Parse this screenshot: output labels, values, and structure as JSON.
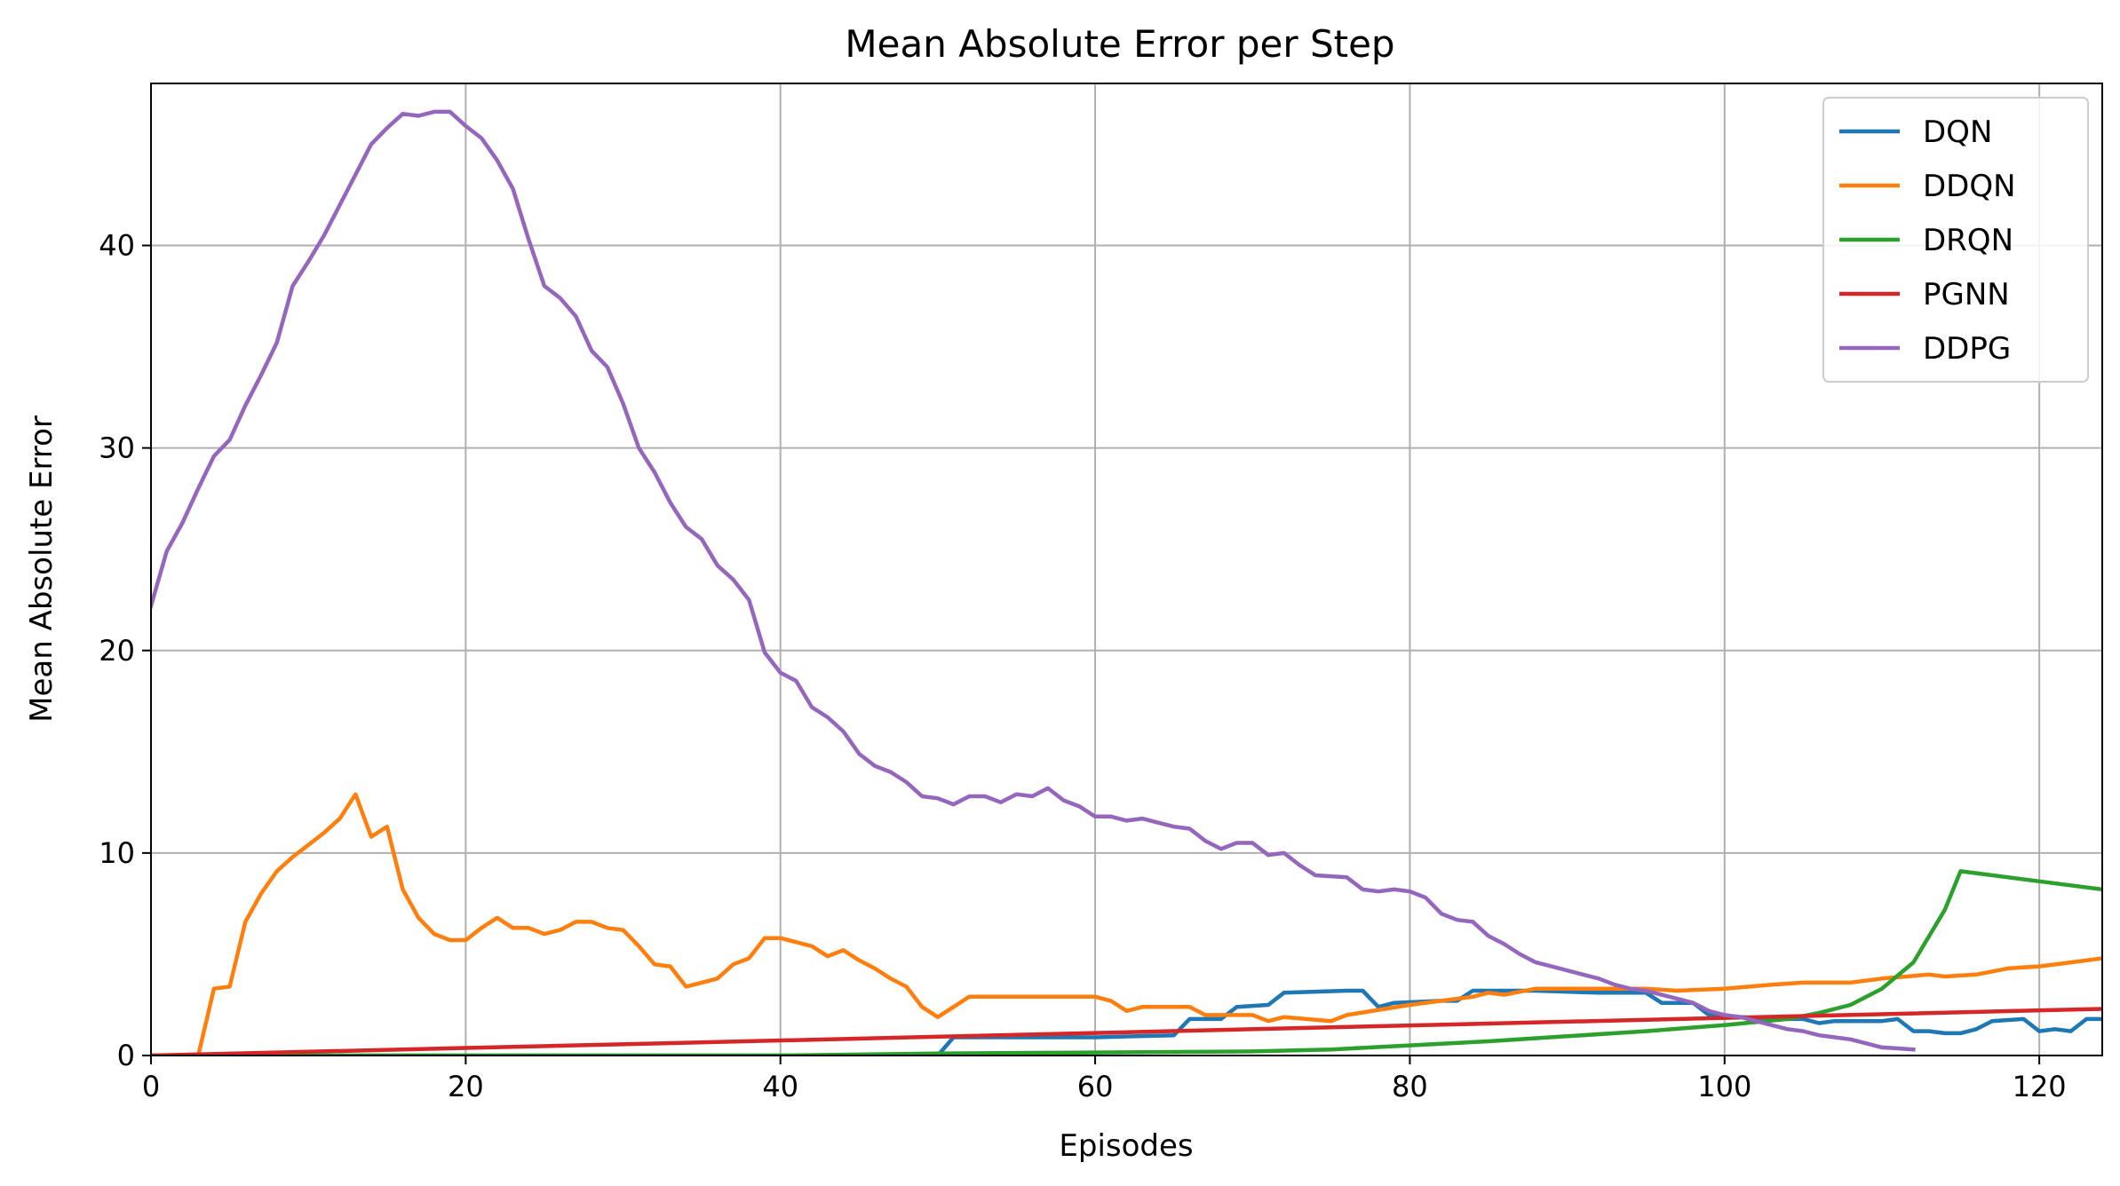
{
  "chart_data": {
    "type": "line",
    "title": "Mean Absolute Error per Step",
    "xlabel": "Episodes",
    "ylabel": "Mean Absolute Error",
    "xlim": [
      0,
      124
    ],
    "ylim": [
      0,
      48
    ],
    "xticks": [
      0,
      20,
      40,
      60,
      80,
      100,
      120
    ],
    "yticks": [
      0,
      10,
      20,
      30,
      40
    ],
    "grid": true,
    "legend_position": "top-right",
    "series": [
      {
        "name": "DQN",
        "color": "#1f77b4",
        "points": [
          [
            0,
            0
          ],
          [
            50,
            0
          ],
          [
            51,
            0.9
          ],
          [
            60,
            0.9
          ],
          [
            65,
            1.0
          ],
          [
            66,
            1.8
          ],
          [
            68,
            1.8
          ],
          [
            69,
            2.4
          ],
          [
            71,
            2.5
          ],
          [
            72,
            3.1
          ],
          [
            76,
            3.2
          ],
          [
            77,
            3.2
          ],
          [
            78,
            2.4
          ],
          [
            79,
            2.6
          ],
          [
            82,
            2.7
          ],
          [
            83,
            2.7
          ],
          [
            84,
            3.2
          ],
          [
            88,
            3.2
          ],
          [
            92,
            3.1
          ],
          [
            95,
            3.1
          ],
          [
            96,
            2.6
          ],
          [
            98,
            2.6
          ],
          [
            99,
            2.0
          ],
          [
            103,
            1.8
          ],
          [
            105,
            1.8
          ],
          [
            106,
            1.6
          ],
          [
            107,
            1.7
          ],
          [
            110,
            1.7
          ],
          [
            111,
            1.8
          ],
          [
            112,
            1.2
          ],
          [
            113,
            1.2
          ],
          [
            114,
            1.1
          ],
          [
            115,
            1.1
          ],
          [
            116,
            1.3
          ],
          [
            117,
            1.7
          ],
          [
            119,
            1.8
          ],
          [
            120,
            1.2
          ],
          [
            121,
            1.3
          ],
          [
            122,
            1.2
          ],
          [
            123,
            1.8
          ],
          [
            124,
            1.8
          ]
        ]
      },
      {
        "name": "DDQN",
        "color": "#ff7f0e",
        "points": [
          [
            0,
            0
          ],
          [
            3,
            0
          ],
          [
            4,
            3.3
          ],
          [
            5,
            3.4
          ],
          [
            6,
            6.6
          ],
          [
            7,
            8.0
          ],
          [
            8,
            9.1
          ],
          [
            9,
            9.8
          ],
          [
            10,
            10.4
          ],
          [
            11,
            11.0
          ],
          [
            12,
            11.7
          ],
          [
            13,
            12.9
          ],
          [
            14,
            10.8
          ],
          [
            15,
            11.3
          ],
          [
            16,
            8.2
          ],
          [
            17,
            6.8
          ],
          [
            18,
            6.0
          ],
          [
            19,
            5.7
          ],
          [
            20,
            5.7
          ],
          [
            21,
            6.3
          ],
          [
            22,
            6.8
          ],
          [
            23,
            6.3
          ],
          [
            24,
            6.3
          ],
          [
            25,
            6.0
          ],
          [
            26,
            6.2
          ],
          [
            27,
            6.6
          ],
          [
            28,
            6.6
          ],
          [
            29,
            6.3
          ],
          [
            30,
            6.2
          ],
          [
            31,
            5.4
          ],
          [
            32,
            4.5
          ],
          [
            33,
            4.4
          ],
          [
            34,
            3.4
          ],
          [
            35,
            3.6
          ],
          [
            36,
            3.8
          ],
          [
            37,
            4.5
          ],
          [
            38,
            4.8
          ],
          [
            39,
            5.8
          ],
          [
            40,
            5.8
          ],
          [
            41,
            5.6
          ],
          [
            42,
            5.4
          ],
          [
            43,
            4.9
          ],
          [
            44,
            5.2
          ],
          [
            45,
            4.7
          ],
          [
            46,
            4.3
          ],
          [
            47,
            3.8
          ],
          [
            48,
            3.4
          ],
          [
            49,
            2.4
          ],
          [
            50,
            1.9
          ],
          [
            51,
            2.4
          ],
          [
            52,
            2.9
          ],
          [
            55,
            2.9
          ],
          [
            58,
            2.9
          ],
          [
            60,
            2.9
          ],
          [
            61,
            2.7
          ],
          [
            62,
            2.2
          ],
          [
            63,
            2.4
          ],
          [
            64,
            2.4
          ],
          [
            66,
            2.4
          ],
          [
            67,
            2.0
          ],
          [
            68,
            2.0
          ],
          [
            70,
            2.0
          ],
          [
            71,
            1.7
          ],
          [
            72,
            1.9
          ],
          [
            75,
            1.7
          ],
          [
            76,
            2.0
          ],
          [
            80,
            2.5
          ],
          [
            82,
            2.7
          ],
          [
            84,
            2.9
          ],
          [
            85,
            3.1
          ],
          [
            86,
            3.0
          ],
          [
            88,
            3.3
          ],
          [
            90,
            3.3
          ],
          [
            95,
            3.3
          ],
          [
            97,
            3.2
          ],
          [
            100,
            3.3
          ],
          [
            103,
            3.5
          ],
          [
            105,
            3.6
          ],
          [
            108,
            3.6
          ],
          [
            110,
            3.8
          ],
          [
            113,
            4.0
          ],
          [
            114,
            3.9
          ],
          [
            116,
            4.0
          ],
          [
            118,
            4.3
          ],
          [
            120,
            4.4
          ],
          [
            122,
            4.6
          ],
          [
            124,
            4.8
          ]
        ]
      },
      {
        "name": "DRQN",
        "color": "#2ca02c",
        "points": [
          [
            0,
            0
          ],
          [
            40,
            0
          ],
          [
            50,
            0.1
          ],
          [
            60,
            0.15
          ],
          [
            70,
            0.2
          ],
          [
            75,
            0.3
          ],
          [
            80,
            0.5
          ],
          [
            85,
            0.7
          ],
          [
            90,
            0.95
          ],
          [
            95,
            1.2
          ],
          [
            100,
            1.5
          ],
          [
            104,
            1.8
          ],
          [
            106,
            2.1
          ],
          [
            108,
            2.5
          ],
          [
            110,
            3.3
          ],
          [
            112,
            4.6
          ],
          [
            114,
            7.2
          ],
          [
            115,
            9.1
          ],
          [
            120,
            8.6
          ],
          [
            124,
            8.2
          ]
        ]
      },
      {
        "name": "PGNN",
        "color": "#d62728",
        "points": [
          [
            0,
            0
          ],
          [
            124,
            2.3
          ]
        ]
      },
      {
        "name": "DDPG",
        "color": "#9467bd",
        "points": [
          [
            0,
            22.2
          ],
          [
            1,
            24.9
          ],
          [
            2,
            26.3
          ],
          [
            3,
            28.0
          ],
          [
            4,
            29.6
          ],
          [
            5,
            30.4
          ],
          [
            6,
            32.1
          ],
          [
            7,
            33.6
          ],
          [
            8,
            35.2
          ],
          [
            9,
            38.0
          ],
          [
            10,
            39.2
          ],
          [
            11,
            40.5
          ],
          [
            12,
            42.0
          ],
          [
            13,
            43.5
          ],
          [
            14,
            45.0
          ],
          [
            15,
            45.8
          ],
          [
            16,
            46.5
          ],
          [
            17,
            46.4
          ],
          [
            18,
            46.6
          ],
          [
            19,
            46.6
          ],
          [
            20,
            45.9
          ],
          [
            21,
            45.3
          ],
          [
            22,
            44.2
          ],
          [
            23,
            42.8
          ],
          [
            24,
            40.3
          ],
          [
            25,
            38.0
          ],
          [
            26,
            37.4
          ],
          [
            27,
            36.5
          ],
          [
            28,
            34.8
          ],
          [
            29,
            34.0
          ],
          [
            30,
            32.2
          ],
          [
            31,
            30.0
          ],
          [
            32,
            28.8
          ],
          [
            33,
            27.3
          ],
          [
            34,
            26.1
          ],
          [
            35,
            25.5
          ],
          [
            36,
            24.2
          ],
          [
            37,
            23.5
          ],
          [
            38,
            22.5
          ],
          [
            39,
            19.9
          ],
          [
            40,
            18.9
          ],
          [
            41,
            18.5
          ],
          [
            42,
            17.2
          ],
          [
            43,
            16.7
          ],
          [
            44,
            16.0
          ],
          [
            45,
            14.9
          ],
          [
            46,
            14.3
          ],
          [
            47,
            14.0
          ],
          [
            48,
            13.5
          ],
          [
            49,
            12.8
          ],
          [
            50,
            12.7
          ],
          [
            51,
            12.4
          ],
          [
            52,
            12.8
          ],
          [
            53,
            12.8
          ],
          [
            54,
            12.5
          ],
          [
            55,
            12.9
          ],
          [
            56,
            12.8
          ],
          [
            57,
            13.2
          ],
          [
            58,
            12.6
          ],
          [
            59,
            12.3
          ],
          [
            60,
            11.8
          ],
          [
            61,
            11.8
          ],
          [
            62,
            11.6
          ],
          [
            63,
            11.7
          ],
          [
            64,
            11.5
          ],
          [
            65,
            11.3
          ],
          [
            66,
            11.2
          ],
          [
            67,
            10.6
          ],
          [
            68,
            10.2
          ],
          [
            69,
            10.5
          ],
          [
            70,
            10.5
          ],
          [
            71,
            9.9
          ],
          [
            72,
            10.0
          ],
          [
            73,
            9.4
          ],
          [
            74,
            8.9
          ],
          [
            76,
            8.8
          ],
          [
            77,
            8.2
          ],
          [
            78,
            8.1
          ],
          [
            79,
            8.2
          ],
          [
            80,
            8.1
          ],
          [
            81,
            7.8
          ],
          [
            82,
            7.0
          ],
          [
            83,
            6.7
          ],
          [
            84,
            6.6
          ],
          [
            85,
            5.9
          ],
          [
            86,
            5.5
          ],
          [
            87,
            5.0
          ],
          [
            88,
            4.6
          ],
          [
            89,
            4.4
          ],
          [
            90,
            4.2
          ],
          [
            91,
            4.0
          ],
          [
            92,
            3.8
          ],
          [
            93,
            3.5
          ],
          [
            94,
            3.3
          ],
          [
            95,
            3.2
          ],
          [
            96,
            3.0
          ],
          [
            97,
            2.8
          ],
          [
            98,
            2.6
          ],
          [
            99,
            2.2
          ],
          [
            100,
            2.0
          ],
          [
            101,
            1.9
          ],
          [
            102,
            1.7
          ],
          [
            103,
            1.5
          ],
          [
            104,
            1.3
          ],
          [
            105,
            1.2
          ],
          [
            106,
            1.0
          ],
          [
            107,
            0.9
          ],
          [
            108,
            0.8
          ],
          [
            109,
            0.6
          ],
          [
            110,
            0.4
          ],
          [
            111,
            0.35
          ],
          [
            112,
            0.3
          ]
        ]
      }
    ]
  }
}
